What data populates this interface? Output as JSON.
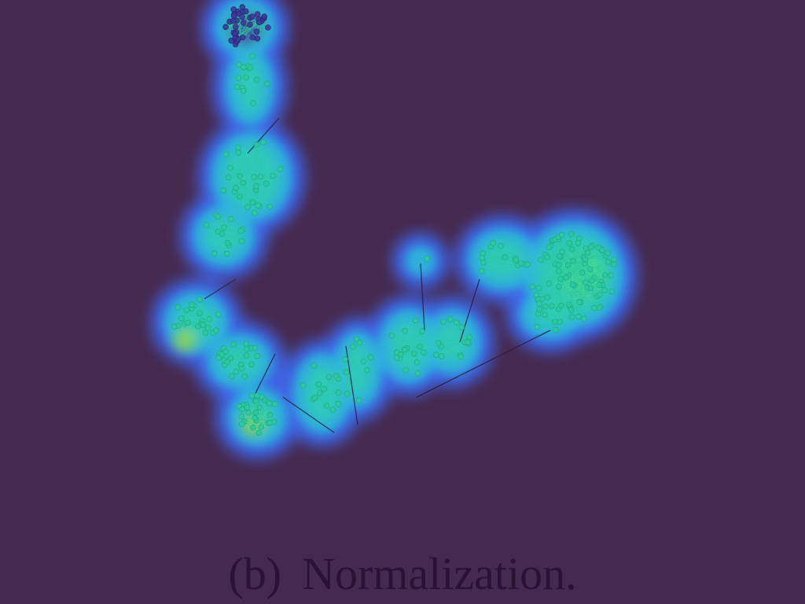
{
  "caption": {
    "label": "(b)",
    "text": "Normalization."
  },
  "colors": {
    "background": "#46294f",
    "glow_outer": "#3f66e8",
    "glow_mid": "#2fb4e0",
    "glow_inner": "#2fd0b0",
    "dense_core": "#9ad83a",
    "top_cluster_core": "#46309a",
    "node": "#2cc9a0",
    "edge": "#2a1a3a"
  }
}
